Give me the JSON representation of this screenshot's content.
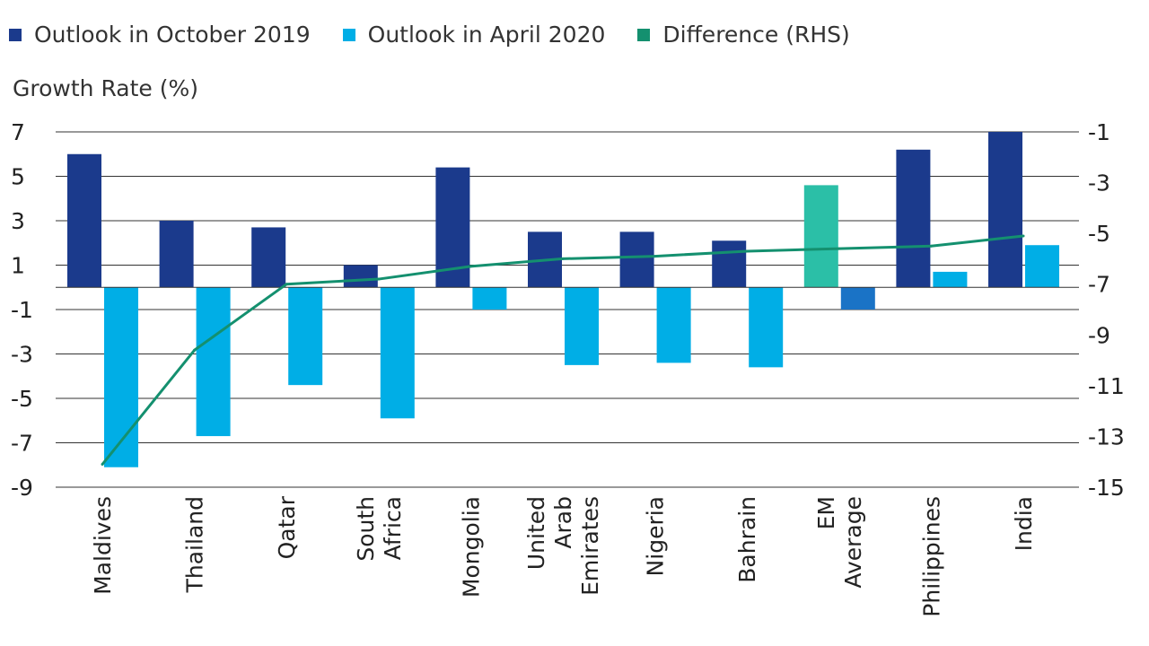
{
  "legend": {
    "oct2019": "Outlook in October 2019",
    "apr2020": "Outlook in April 2020",
    "diff": "Difference (RHS)"
  },
  "chart_data": {
    "type": "bar",
    "title": "",
    "ylabel": "Growth Rate (%)",
    "xlabel": "",
    "ylim": [
      -9,
      7
    ],
    "y2lim": [
      -15,
      -1
    ],
    "y_ticks": [
      7,
      5,
      3,
      1,
      -1,
      -3,
      -5,
      -7,
      -9
    ],
    "y2_ticks": [
      -1,
      -3,
      -5,
      -7,
      -9,
      -11,
      -13,
      -15
    ],
    "grid": true,
    "legend_position": "top-left",
    "categories": [
      [
        "Maldives"
      ],
      [
        "Thailand"
      ],
      [
        "Qatar"
      ],
      [
        "South",
        "Africa"
      ],
      [
        "Mongolia"
      ],
      [
        "United",
        "Arab",
        "Emirates"
      ],
      [
        "Nigeria"
      ],
      [
        "Bahrain"
      ],
      [
        "EM",
        "Average"
      ],
      [
        "Philippines"
      ],
      [
        "India"
      ]
    ],
    "series": [
      {
        "name": "Outlook in October 2019",
        "type": "bar",
        "axis": "left",
        "color": "#1b3a8c",
        "values": [
          6.0,
          3.0,
          2.7,
          1.0,
          5.4,
          2.5,
          2.5,
          2.1,
          4.6,
          6.2,
          7.0
        ]
      },
      {
        "name": "Outlook in April 2020",
        "type": "bar",
        "axis": "left",
        "color": "#00aee6",
        "values": [
          -8.1,
          -6.7,
          -4.4,
          -5.9,
          -1.0,
          -3.5,
          -3.4,
          -3.6,
          -1.0,
          0.7,
          1.9
        ]
      },
      {
        "name": "Difference (RHS)",
        "type": "line",
        "axis": "right",
        "color": "#14906f",
        "values": [
          -14.1,
          -9.6,
          -7.0,
          -6.8,
          -6.3,
          -6.0,
          -5.9,
          -5.7,
          -5.6,
          -5.5,
          -5.1
        ]
      }
    ],
    "highlight_colors": {
      "em_average_oct2019": "#2bbfa7",
      "em_average_apr2020": "#1a73c6"
    }
  }
}
